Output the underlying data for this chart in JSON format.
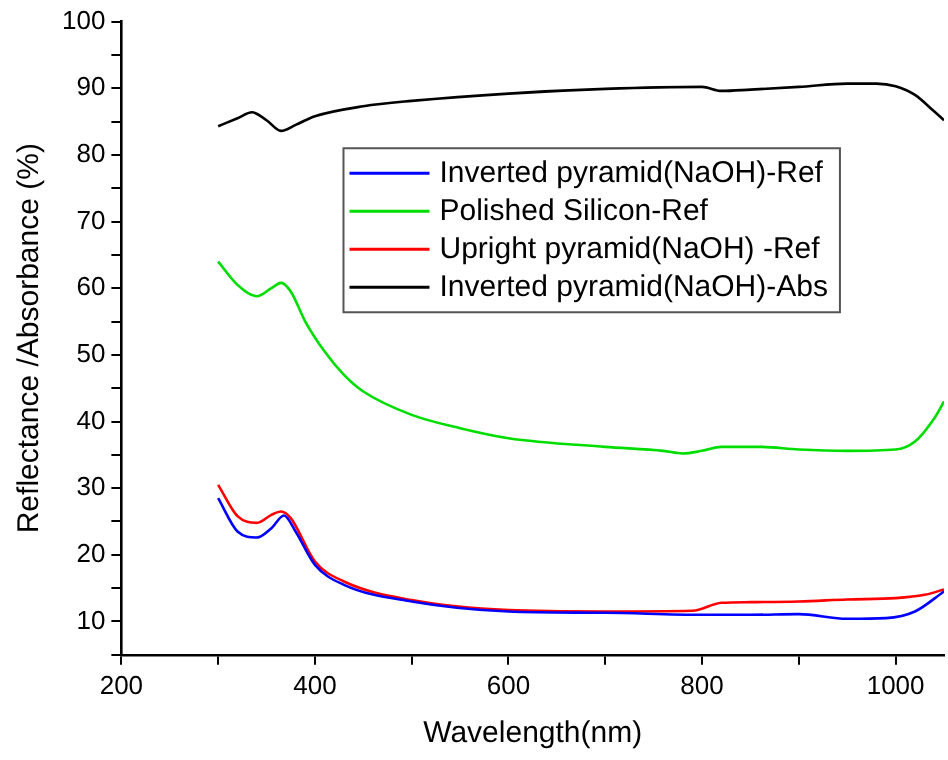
{
  "chart_data": {
    "type": "line",
    "xlabel": "Wavelength(nm)",
    "ylabel": "Reflectance /Absorbance (%)",
    "xlim": [
      200,
      1050
    ],
    "ylim": [
      5,
      100
    ],
    "xticks": [
      200,
      {
        "value": 300,
        "label": null
      },
      400,
      {
        "value": 500,
        "label": null
      },
      600,
      {
        "value": 700,
        "label": null
      },
      800,
      {
        "value": 900,
        "label": null
      },
      1000
    ],
    "yticks": [
      {
        "value": 5,
        "label": null
      },
      10,
      {
        "value": 15,
        "label": null
      },
      20,
      {
        "value": 25,
        "label": null
      },
      30,
      {
        "value": 35,
        "label": null
      },
      40,
      {
        "value": 45,
        "label": null
      },
      50,
      {
        "value": 55,
        "label": null
      },
      60,
      {
        "value": 65,
        "label": null
      },
      70,
      {
        "value": 75,
        "label": null
      },
      80,
      {
        "value": 85,
        "label": null
      },
      90,
      {
        "value": 95,
        "label": null
      },
      100
    ],
    "grid": false,
    "legend": "top right",
    "marker": "none",
    "line_style": "solid",
    "series": [
      {
        "name": "Inverted pyramid(NaOH)-Ref",
        "color": "#0000ff",
        "x": [
          300,
          320,
          340,
          355,
          368,
          380,
          400,
          430,
          500,
          600,
          700,
          800,
          850,
          900,
          950,
          990,
          1020,
          1050
        ],
        "values": [
          28.5,
          23.5,
          22.6,
          24,
          25.9,
          23.5,
          18.5,
          15.5,
          13,
          11.5,
          11.3,
          11,
          11,
          11.1,
          10.4,
          10.5,
          11.5,
          14.5
        ]
      },
      {
        "name": "Polished Silicon-Ref",
        "color": "#00dd00",
        "x": [
          300,
          320,
          340,
          355,
          365,
          375,
          390,
          410,
          430,
          450,
          500,
          550,
          600,
          700,
          760,
          780,
          800,
          820,
          860,
          900,
          950,
          1000,
          1020,
          1040,
          1050
        ],
        "values": [
          64,
          60.5,
          58.8,
          60,
          60.8,
          59.5,
          55,
          50.5,
          47,
          44.5,
          41,
          39,
          37.5,
          36.2,
          35.6,
          35.2,
          35.6,
          36.2,
          36.2,
          35.8,
          35.6,
          35.8,
          37,
          40.5,
          43
        ]
      },
      {
        "name": "Upright pyramid(NaOH) -Ref",
        "color": "#ff0000",
        "x": [
          300,
          320,
          340,
          355,
          365,
          375,
          400,
          430,
          500,
          600,
          700,
          790,
          820,
          850,
          900,
          950,
          1000,
          1030,
          1050
        ],
        "values": [
          30.5,
          25.8,
          24.8,
          26,
          26.5,
          25.5,
          19,
          16,
          13.2,
          11.7,
          11.5,
          11.6,
          12.8,
          12.9,
          13,
          13.3,
          13.5,
          14,
          14.8
        ]
      },
      {
        "name": "Inverted pyramid(NaOH)-Abs",
        "color": "#000000",
        "x": [
          300,
          320,
          335,
          350,
          365,
          380,
          400,
          450,
          500,
          600,
          700,
          800,
          820,
          850,
          900,
          950,
          980,
          1000,
          1020,
          1040,
          1050
        ],
        "values": [
          84.3,
          85.5,
          86.4,
          85.2,
          83.6,
          84.5,
          85.8,
          87.3,
          88.1,
          89.2,
          89.9,
          90.2,
          89.6,
          89.8,
          90.2,
          90.7,
          90.7,
          90.3,
          89,
          86.5,
          85.2
        ]
      }
    ]
  }
}
